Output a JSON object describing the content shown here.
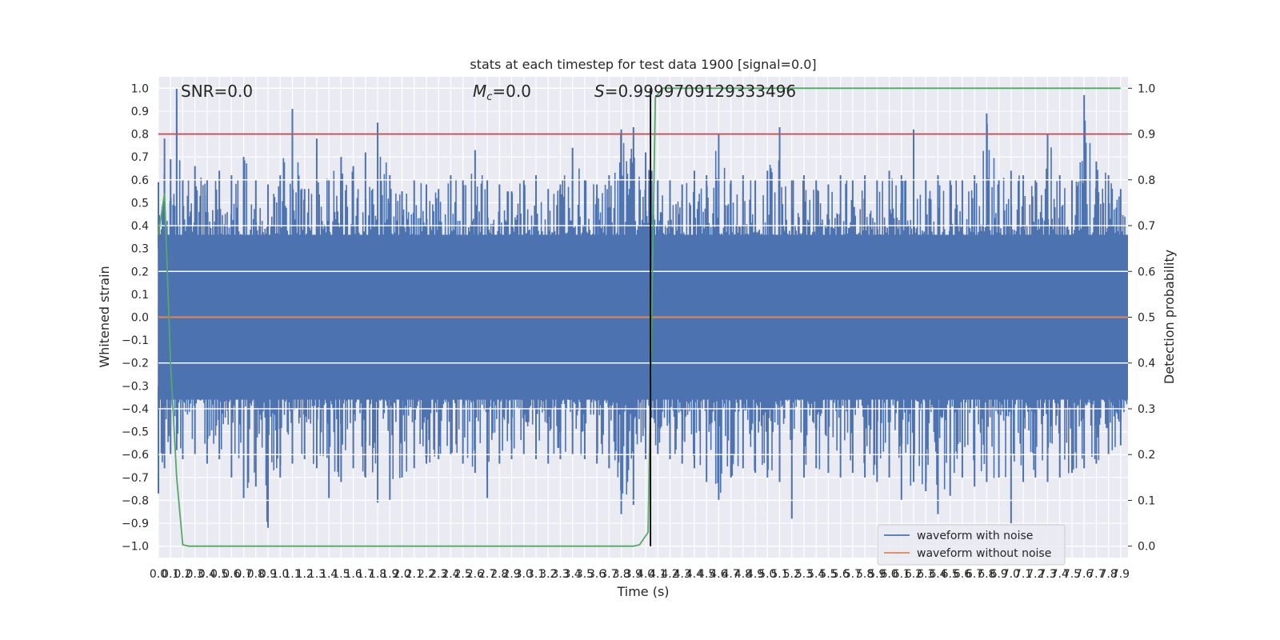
{
  "chart_data": {
    "type": "line",
    "title": "stats at each timestep for test data 1900 [signal=0.0]",
    "xlabel": "Time (s)",
    "ylabel": "Whitened strain",
    "y2label": "Detection probability",
    "xlim": [
      0.0,
      7.96
    ],
    "ylim": [
      -1.05,
      1.05
    ],
    "y2lim": [
      -0.025,
      1.025
    ],
    "x_ticks": [
      "0.0",
      "0.1",
      "0.2",
      "0.3",
      "0.4",
      "0.5",
      "0.6",
      "0.7",
      "0.8",
      "0.9",
      "1.0",
      "1.1",
      "1.2",
      "1.3",
      "1.4",
      "1.5",
      "1.6",
      "1.7",
      "1.8",
      "1.9",
      "2.0",
      "2.1",
      "2.2",
      "2.3",
      "2.4",
      "2.5",
      "2.6",
      "2.7",
      "2.8",
      "2.9",
      "3.0",
      "3.1",
      "3.2",
      "3.3",
      "3.4",
      "3.5",
      "3.6",
      "3.7",
      "3.8",
      "3.9",
      "4.0",
      "4.1",
      "4.2",
      "4.3",
      "4.4",
      "4.5",
      "4.6",
      "4.7",
      "4.8",
      "4.9",
      "5.0",
      "5.1",
      "5.2",
      "5.3",
      "5.4",
      "5.5",
      "5.6",
      "5.7",
      "5.8",
      "5.9",
      "6.0",
      "6.1",
      "6.2",
      "6.3",
      "6.4",
      "6.5",
      "6.6",
      "6.7",
      "6.8",
      "6.9",
      "7.0",
      "7.1",
      "7.2",
      "7.3",
      "7.4",
      "7.5",
      "7.6",
      "7.7",
      "7.8",
      "7.9"
    ],
    "y_ticks": [
      "1.0",
      "0.9",
      "0.8",
      "0.7",
      "0.6",
      "0.5",
      "0.4",
      "0.3",
      "0.2",
      "0.1",
      "0.0",
      "-0.1",
      "-0.2",
      "-0.3",
      "-0.4",
      "-0.5",
      "-0.6",
      "-0.7",
      "-0.8",
      "-0.9",
      "-1.0"
    ],
    "y2_ticks": [
      "1.0",
      "0.9",
      "0.8",
      "0.7",
      "0.6",
      "0.5",
      "0.4",
      "0.3",
      "0.2",
      "0.1",
      "0.0"
    ],
    "series": [
      {
        "name": "waveform with noise",
        "color": "#4c72b0",
        "axis": "left",
        "style": "dense noise envelope",
        "upper_envelope": [
          [
            0.0,
            0.59
          ],
          [
            0.05,
            0.78
          ],
          [
            0.1,
            0.69
          ],
          [
            0.15,
            1.0
          ],
          [
            0.2,
            0.6
          ],
          [
            0.3,
            0.66
          ],
          [
            0.4,
            0.6
          ],
          [
            0.5,
            0.64
          ],
          [
            0.6,
            0.62
          ],
          [
            0.7,
            0.7
          ],
          [
            0.8,
            0.6
          ],
          [
            0.9,
            0.58
          ],
          [
            1.0,
            0.62
          ],
          [
            1.1,
            0.91
          ],
          [
            1.2,
            0.56
          ],
          [
            1.3,
            0.78
          ],
          [
            1.4,
            0.6
          ],
          [
            1.5,
            0.7
          ],
          [
            1.6,
            0.66
          ],
          [
            1.7,
            0.72
          ],
          [
            1.8,
            0.85
          ],
          [
            1.9,
            0.62
          ],
          [
            2.0,
            0.55
          ],
          [
            2.1,
            0.6
          ],
          [
            2.2,
            0.58
          ],
          [
            2.3,
            0.56
          ],
          [
            2.4,
            0.62
          ],
          [
            2.5,
            0.6
          ],
          [
            2.6,
            0.73
          ],
          [
            2.7,
            0.6
          ],
          [
            2.8,
            0.58
          ],
          [
            2.9,
            0.55
          ],
          [
            3.0,
            0.6
          ],
          [
            3.1,
            0.62
          ],
          [
            3.2,
            0.56
          ],
          [
            3.3,
            0.58
          ],
          [
            3.4,
            0.74
          ],
          [
            3.5,
            0.6
          ],
          [
            3.6,
            0.58
          ],
          [
            3.7,
            0.62
          ],
          [
            3.8,
            0.82
          ],
          [
            3.9,
            0.83
          ],
          [
            4.0,
            0.72
          ],
          [
            4.05,
            0.64
          ],
          [
            4.1,
            0.6
          ],
          [
            4.2,
            0.6
          ],
          [
            4.3,
            0.58
          ],
          [
            4.4,
            0.64
          ],
          [
            4.5,
            0.62
          ],
          [
            4.6,
            0.8
          ],
          [
            4.7,
            0.6
          ],
          [
            4.8,
            0.62
          ],
          [
            4.9,
            0.6
          ],
          [
            5.0,
            0.64
          ],
          [
            5.1,
            0.83
          ],
          [
            5.2,
            0.6
          ],
          [
            5.3,
            0.62
          ],
          [
            5.4,
            0.6
          ],
          [
            5.5,
            0.58
          ],
          [
            5.6,
            0.62
          ],
          [
            5.7,
            0.6
          ],
          [
            5.8,
            0.62
          ],
          [
            5.9,
            0.6
          ],
          [
            6.0,
            0.64
          ],
          [
            6.1,
            0.62
          ],
          [
            6.2,
            0.82
          ],
          [
            6.3,
            0.6
          ],
          [
            6.4,
            0.62
          ],
          [
            6.5,
            0.6
          ],
          [
            6.6,
            0.6
          ],
          [
            6.7,
            0.62
          ],
          [
            6.8,
            0.89
          ],
          [
            6.9,
            0.6
          ],
          [
            7.0,
            0.64
          ],
          [
            7.1,
            0.62
          ],
          [
            7.2,
            0.6
          ],
          [
            7.3,
            0.8
          ],
          [
            7.4,
            0.62
          ],
          [
            7.5,
            0.6
          ],
          [
            7.6,
            0.97
          ],
          [
            7.7,
            0.68
          ],
          [
            7.8,
            0.62
          ],
          [
            7.9,
            0.56
          ]
        ],
        "lower_envelope": [
          [
            0.0,
            -0.77
          ],
          [
            0.05,
            -0.66
          ],
          [
            0.1,
            -0.6
          ],
          [
            0.15,
            -0.58
          ],
          [
            0.2,
            -0.62
          ],
          [
            0.3,
            -0.6
          ],
          [
            0.4,
            -0.64
          ],
          [
            0.5,
            -0.62
          ],
          [
            0.6,
            -0.7
          ],
          [
            0.7,
            -0.79
          ],
          [
            0.8,
            -0.74
          ],
          [
            0.9,
            -0.92
          ],
          [
            1.0,
            -0.7
          ],
          [
            1.1,
            -0.64
          ],
          [
            1.2,
            -0.62
          ],
          [
            1.3,
            -0.66
          ],
          [
            1.4,
            -0.79
          ],
          [
            1.5,
            -0.72
          ],
          [
            1.6,
            -0.66
          ],
          [
            1.7,
            -0.7
          ],
          [
            1.8,
            -0.81
          ],
          [
            1.9,
            -0.8
          ],
          [
            2.0,
            -0.7
          ],
          [
            2.1,
            -0.66
          ],
          [
            2.2,
            -0.64
          ],
          [
            2.3,
            -0.62
          ],
          [
            2.4,
            -0.6
          ],
          [
            2.5,
            -0.64
          ],
          [
            2.6,
            -0.68
          ],
          [
            2.7,
            -0.79
          ],
          [
            2.8,
            -0.64
          ],
          [
            2.9,
            -0.62
          ],
          [
            3.0,
            -0.6
          ],
          [
            3.1,
            -0.62
          ],
          [
            3.2,
            -0.64
          ],
          [
            3.3,
            -0.62
          ],
          [
            3.4,
            -0.6
          ],
          [
            3.5,
            -0.62
          ],
          [
            3.6,
            -0.64
          ],
          [
            3.7,
            -0.66
          ],
          [
            3.8,
            -0.86
          ],
          [
            3.9,
            -0.82
          ],
          [
            4.0,
            -0.62
          ],
          [
            4.1,
            -0.6
          ],
          [
            4.2,
            -0.62
          ],
          [
            4.3,
            -0.64
          ],
          [
            4.4,
            -0.66
          ],
          [
            4.5,
            -0.72
          ],
          [
            4.6,
            -0.8
          ],
          [
            4.7,
            -0.7
          ],
          [
            4.8,
            -0.66
          ],
          [
            4.9,
            -0.68
          ],
          [
            5.0,
            -0.7
          ],
          [
            5.1,
            -0.72
          ],
          [
            5.2,
            -0.88
          ],
          [
            5.3,
            -0.7
          ],
          [
            5.4,
            -0.66
          ],
          [
            5.5,
            -0.68
          ],
          [
            5.6,
            -0.7
          ],
          [
            5.7,
            -0.68
          ],
          [
            5.8,
            -0.7
          ],
          [
            5.9,
            -0.72
          ],
          [
            6.0,
            -0.7
          ],
          [
            6.1,
            -0.8
          ],
          [
            6.2,
            -0.72
          ],
          [
            6.3,
            -0.76
          ],
          [
            6.4,
            -0.86
          ],
          [
            6.5,
            -0.78
          ],
          [
            6.6,
            -0.7
          ],
          [
            6.7,
            -0.74
          ],
          [
            6.8,
            -0.72
          ],
          [
            6.9,
            -0.7
          ],
          [
            7.0,
            -0.9
          ],
          [
            7.1,
            -0.72
          ],
          [
            7.2,
            -0.7
          ],
          [
            7.3,
            -0.72
          ],
          [
            7.4,
            -0.7
          ],
          [
            7.5,
            -0.68
          ],
          [
            7.6,
            -0.66
          ],
          [
            7.7,
            -0.64
          ],
          [
            7.8,
            -0.6
          ],
          [
            7.9,
            -0.56
          ]
        ]
      },
      {
        "name": "waveform without noise",
        "color": "#dd8452",
        "axis": "left",
        "x": [
          0.0,
          7.96
        ],
        "y": [
          0.0,
          0.0
        ]
      },
      {
        "color": "#55a868",
        "axis": "right",
        "x": [
          0.0,
          0.05,
          0.1,
          0.15,
          0.2,
          0.25,
          0.3,
          0.4,
          1.0,
          2.0,
          3.0,
          3.9,
          3.95,
          4.02,
          4.08,
          4.14,
          4.2,
          5.0,
          6.0,
          7.0,
          7.9
        ],
        "y": [
          0.68,
          0.77,
          0.4,
          0.15,
          0.003,
          0.0,
          0.0,
          0.0,
          0.0,
          0.0,
          0.0,
          0.0,
          0.003,
          0.03,
          0.98,
          1.0,
          1.0,
          1.0,
          1.0,
          1.0,
          1.0
        ]
      }
    ],
    "threshold_line": {
      "axis": "right",
      "y": 0.9,
      "color": "#c44e52"
    },
    "vertical_line": {
      "x": 4.04,
      "color": "#000000",
      "y2_from": 0.0,
      "y2_to": 1.0
    },
    "annotations": {
      "snr": "SNR=0.0",
      "mc_symbol": "M",
      "mc_sub": "c",
      "mc_value": "=0.0",
      "s_symbol": "S",
      "s_value": "=0.9999709129333496"
    },
    "legend": {
      "placement": "lower-right",
      "entries": [
        "waveform with noise",
        "waveform without noise"
      ]
    },
    "grid": true,
    "colors": {
      "background": "#eaeaf2",
      "grid": "#ffffff",
      "text": "#262626"
    }
  }
}
